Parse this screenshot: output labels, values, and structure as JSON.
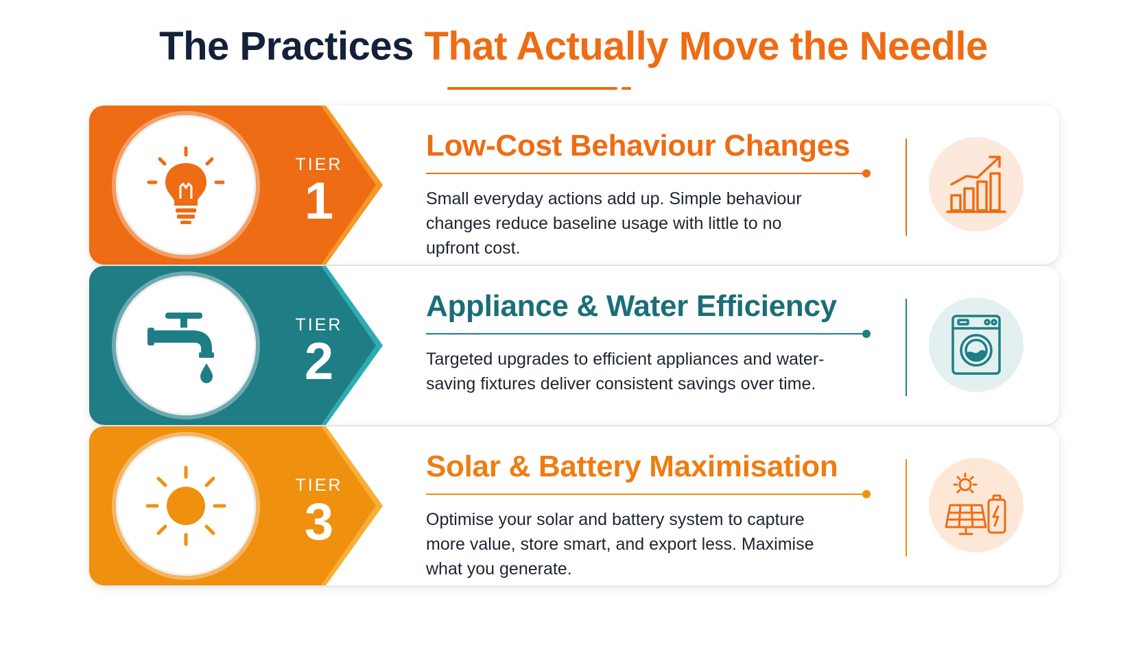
{
  "header": {
    "title_dark": "The Practices",
    "title_accent": "That Actually Move the Needle"
  },
  "colors": {
    "navy": "#14213a",
    "orange": "#ee6c13",
    "teal": "#1f7d85",
    "amber": "#f0900f"
  },
  "tiers": [
    {
      "tier_label": "TIER",
      "number": "1",
      "heading": "Low-Cost Behaviour Changes",
      "description": "Small everyday actions add up. Simple behaviour changes reduce baseline usage with little to no upfront cost.",
      "main_icon": "lightbulb-icon",
      "side_icon": "growth-chart-icon"
    },
    {
      "tier_label": "TIER",
      "number": "2",
      "heading": "Appliance & Water Efficiency",
      "description": "Targeted upgrades to efficient appliances and water-saving fixtures deliver consistent savings over time.",
      "main_icon": "water-tap-icon",
      "side_icon": "washing-machine-icon"
    },
    {
      "tier_label": "TIER",
      "number": "3",
      "heading": "Solar & Battery Maximisation",
      "description": "Optimise your solar and battery system to capture more value, store smart, and export less. Maximise what you generate.",
      "main_icon": "sun-icon",
      "side_icon": "solar-battery-icon"
    }
  ]
}
